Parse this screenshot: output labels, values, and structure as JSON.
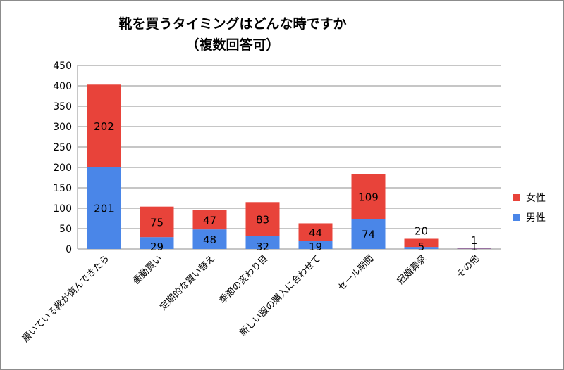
{
  "chart_data": {
    "type": "bar",
    "stacked": true,
    "title": "靴を買うタイミングはどんな時ですか",
    "subtitle": "（複数回答可）",
    "xlabel": "",
    "ylabel": "",
    "ylim": [
      0,
      450
    ],
    "yticks": [
      0,
      50,
      100,
      150,
      200,
      250,
      300,
      350,
      400,
      450
    ],
    "grid": true,
    "legend_position": "right",
    "categories": [
      "履いている靴が傷んできたら",
      "衝動買い",
      "定期的な買い替え",
      "季節の変わり目",
      "新しい服の購入に合わせて",
      "セール期間",
      "冠婚葬祭",
      "その他"
    ],
    "series": [
      {
        "name": "男性",
        "color": "#4a86e8",
        "values": [
          201,
          29,
          48,
          32,
          19,
          74,
          5,
          1
        ]
      },
      {
        "name": "女性",
        "color": "#e8433a",
        "values": [
          202,
          75,
          47,
          83,
          44,
          109,
          20,
          1
        ]
      }
    ],
    "legend_order": [
      "女性",
      "男性"
    ]
  }
}
